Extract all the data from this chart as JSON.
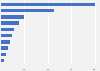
{
  "values": [
    100,
    57,
    25,
    19,
    14,
    12,
    10,
    8,
    6,
    3
  ],
  "bar_color": "#4472C4",
  "background_color": "#f2f2f2",
  "bar_bg_color": "#f2f2f2",
  "figsize": [
    1.0,
    0.71
  ],
  "dpi": 100,
  "grid_color": "#ffffff",
  "bar_height": 0.55
}
